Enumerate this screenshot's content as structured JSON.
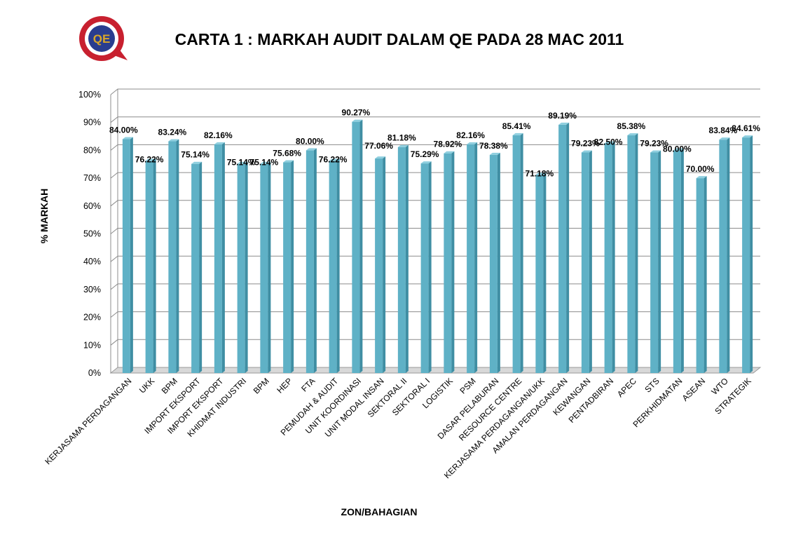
{
  "logo": {
    "name": "seal-logo",
    "ring_text": "QE",
    "colors": {
      "outer": "#c8202f",
      "inner": "#2a3d8f",
      "mid": "#ffffff",
      "gold": "#d9a628"
    }
  },
  "chart_data": {
    "type": "bar",
    "title": "CARTA 1 : MARKAH AUDIT DALAM QE PADA 28 MAC 2011",
    "xlabel": "ZON/BAHAGIAN",
    "ylabel": "% MARKAH",
    "ylim": [
      0,
      100
    ],
    "yticks": [
      "0%",
      "10%",
      "20%",
      "30%",
      "40%",
      "50%",
      "60%",
      "70%",
      "80%",
      "90%",
      "100%"
    ],
    "grid": true,
    "legend": "none",
    "bar_color": "#5fb1c6",
    "categories": [
      "KERJASAMA PERDAGANGAN",
      "UKK",
      "BPM",
      "IMPORT EKSPORT",
      "IMPORT EKSPORT",
      "KHIDMAT INDUSTRI",
      "BPM",
      "HEP",
      "FTA",
      "PEMUDAH & AUDIT",
      "UNIT KOORDINASI",
      "UNIT MODAL INSAN",
      "SEKTORAL II",
      "SEKTORAL I",
      "LOGISTIK",
      "PSM",
      "DASAR PELABURAN",
      "RESOURCE CENTRE",
      "KERJASAMA PERDAGANGAN/UKK",
      "AMALAN PERDAGANGAN",
      "KEWANGAN",
      "PENTADBIRAN",
      "APEC",
      "STS",
      "PERKHIDMATAN",
      "ASEAN",
      "WTO",
      "STRATEGIK"
    ],
    "values": [
      84.0,
      76.22,
      83.24,
      75.14,
      82.16,
      75.14,
      75.14,
      75.68,
      80.0,
      76.22,
      90.27,
      77.06,
      81.18,
      75.29,
      78.92,
      82.16,
      78.38,
      85.41,
      71.18,
      89.19,
      79.23,
      82.5,
      85.38,
      79.23,
      80.0,
      70.0,
      83.84,
      84.61
    ],
    "data_labels": [
      "84.00%",
      "76.22%",
      "83.24%",
      "75.14%",
      "82.16%",
      "75.14%",
      "75.14%",
      "75.68%",
      "80.00%",
      "76.22%",
      "90.27%",
      "77.06%",
      "81.18%",
      "75.29%",
      "78.92%",
      "82.16%",
      "78.38%",
      "85.41%",
      "71.18%",
      "89.19%",
      "79.23%",
      "82.50%",
      "85.38%",
      "79.23%",
      "80.00%",
      "70.00%",
      "83.84%",
      "84.61%"
    ]
  }
}
